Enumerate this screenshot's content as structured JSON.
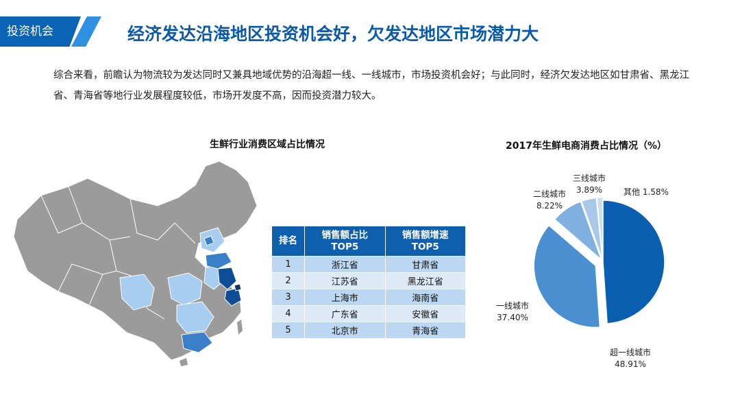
{
  "header": {
    "tag": "投资机会",
    "title": "经济发达沿海地区投资机会好，欠发达地区市场潜力大"
  },
  "intro": "综合来看，前瞻认为物流较为发达同时又兼具地域优势的沿海超一线、一线城市，市场投资机会好；与此同时，经济欠发达地区如甘肃省、黑龙江省、青海省等地行业发展程度较低，市场开发度不高，因而投资潜力较大。",
  "map": {
    "title": "生鲜行业消费区域占比情况"
  },
  "table": {
    "headers": [
      [
        "排名"
      ],
      [
        "销售额占比",
        "TOP5"
      ],
      [
        "销售额增速",
        "TOP5"
      ]
    ],
    "rows": [
      [
        "1",
        "浙江省",
        "甘肃省"
      ],
      [
        "2",
        "江苏省",
        "黑龙江省"
      ],
      [
        "3",
        "上海市",
        "海南省"
      ],
      [
        "4",
        "广东省",
        "安徽省"
      ],
      [
        "5",
        "北京市",
        "青海省"
      ]
    ]
  },
  "chart_data": {
    "type": "pie",
    "title": "2017年生鲜电商消费占比情况（%）",
    "slices": [
      {
        "label": "超一线城市",
        "value": 48.91,
        "value_label": "48.91%",
        "color": "#0b5fb0"
      },
      {
        "label": "一线城市",
        "value": 37.4,
        "value_label": "37.40%",
        "color": "#4a8fd0"
      },
      {
        "label": "二线城市",
        "value": 8.22,
        "value_label": "8.22%",
        "color": "#7fb0e0"
      },
      {
        "label": "三线城市",
        "value": 3.89,
        "value_label": "3.89%",
        "color": "#a8c8ea"
      },
      {
        "label": "其他",
        "value": 1.58,
        "value_label": "1.58%",
        "color": "#c9dcf1"
      }
    ],
    "legend": "none",
    "start": "12 o'clock, clockwise",
    "exploded": "一线城市"
  },
  "colors": {
    "brand_blue": "#0a63b5",
    "map_gray": "#9a9a9a",
    "map_dark": "#0d4d95",
    "map_mid": "#3a80c8",
    "map_light": "#a7cdf0"
  }
}
